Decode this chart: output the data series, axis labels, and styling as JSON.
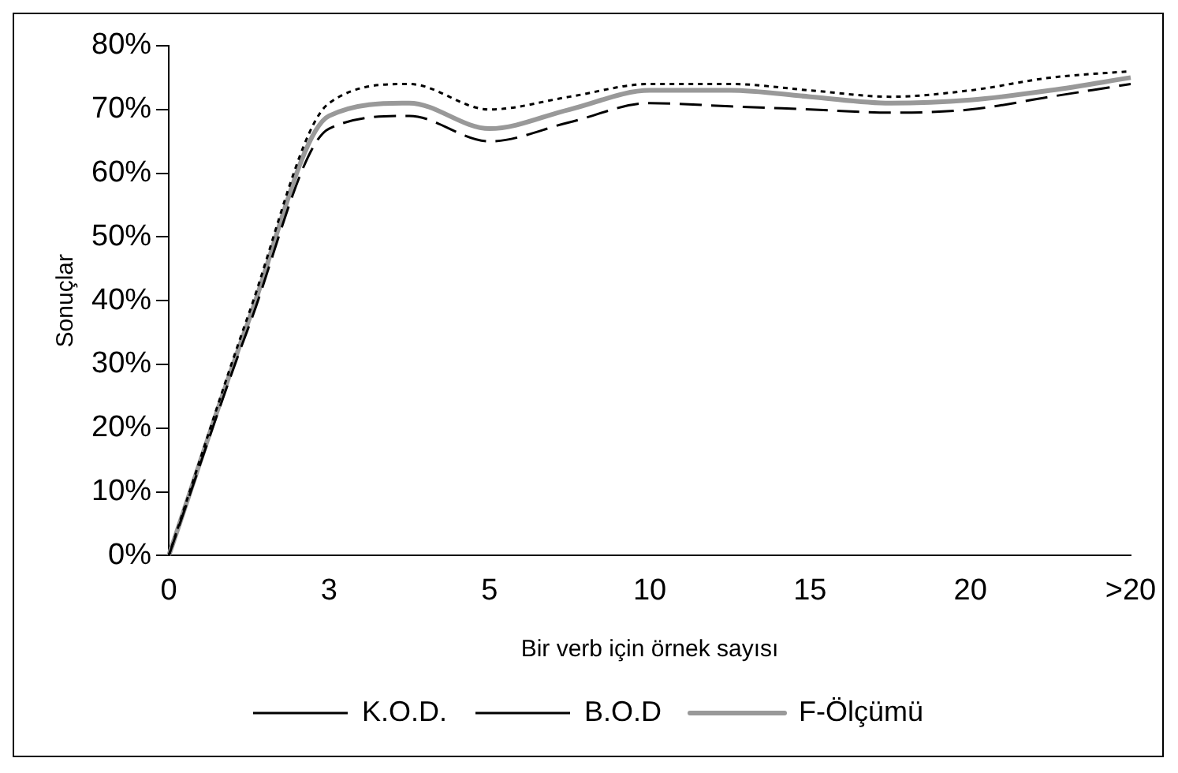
{
  "chart_data": {
    "type": "line",
    "xlabel": "Bir verb için örnek sayısı",
    "ylabel": "Sonuçlar",
    "categories": [
      "0",
      null,
      "3",
      null,
      "5",
      null,
      "10",
      null,
      "15",
      null,
      "20",
      null,
      ">20"
    ],
    "series": [
      {
        "name": "K.O.D.",
        "color": "#000000",
        "line_style": "dashed",
        "values": [
          0,
          36,
          67,
          69,
          65,
          68,
          71,
          70.5,
          70,
          69.5,
          70,
          72,
          74
        ]
      },
      {
        "name": "B.O.D",
        "color": "#000000",
        "line_style": "dotted",
        "values": [
          0,
          38,
          71,
          74,
          70,
          72,
          74,
          74,
          73,
          72,
          73,
          75,
          76
        ]
      },
      {
        "name": "F-Ölçümü",
        "color": "#999999",
        "line_style": "solid",
        "values": [
          0,
          37,
          69,
          71,
          67,
          70,
          73,
          73,
          72,
          71,
          71.5,
          73,
          75
        ]
      }
    ],
    "ylim": [
      0,
      80
    ],
    "yticks": [
      {
        "value": 0,
        "label": "0%"
      },
      {
        "value": 10,
        "label": "10%"
      },
      {
        "value": 20,
        "label": "20%"
      },
      {
        "value": 30,
        "label": "30%"
      },
      {
        "value": 40,
        "label": "40%"
      },
      {
        "value": 50,
        "label": "50%"
      },
      {
        "value": 60,
        "label": "60%"
      },
      {
        "value": 70,
        "label": "70%"
      },
      {
        "value": 80,
        "label": "80%"
      }
    ],
    "grid": false,
    "legend": "bottom",
    "marker": "none"
  }
}
